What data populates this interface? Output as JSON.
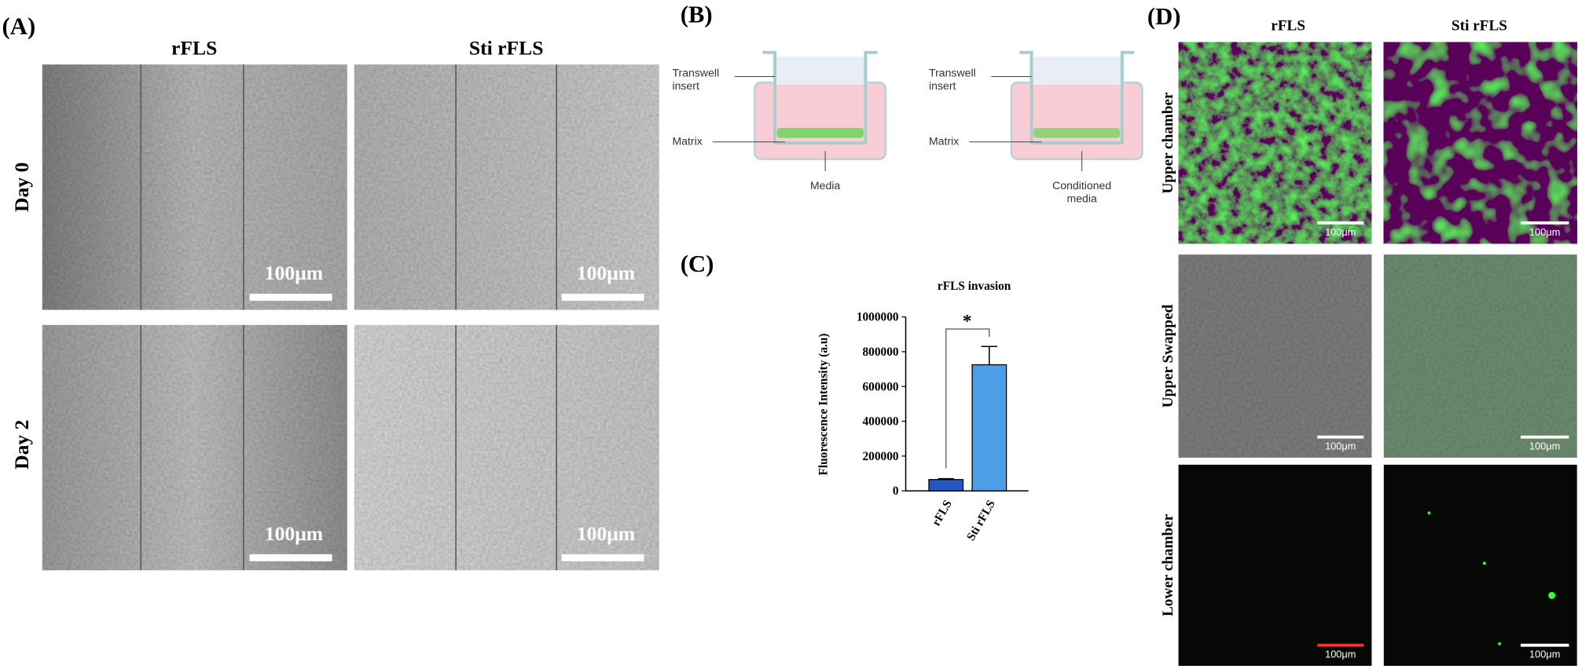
{
  "panel_a": {
    "label": "(A)",
    "columns": [
      "rFLS",
      "Sti rFLS"
    ],
    "rows": [
      "Day 0",
      "Day 2"
    ],
    "scale_bar": "100μm"
  },
  "panel_b": {
    "label": "(B)",
    "insert": [
      "Transwell",
      "insert"
    ],
    "matrix": "Matrix",
    "media": "Media",
    "conditioned": [
      "Conditioned",
      "media"
    ]
  },
  "panel_c": {
    "label": "(C)"
  },
  "panel_d": {
    "label": "(D)",
    "columns": [
      "rFLS",
      "Sti rFLS"
    ],
    "rows": [
      "Upper chamber",
      "Upper Swapped",
      "Lower chamber"
    ],
    "scale_bar": "100μm"
  },
  "chart_data": {
    "type": "bar",
    "title": "rFLS invasion",
    "y_label": "Fluorescence Intensity (a.u)",
    "categories": [
      "rFLS",
      "Sti rFLS"
    ],
    "values": [
      65000,
      725000
    ],
    "errors": [
      5000,
      105000
    ],
    "colors": [
      "#2457c5",
      "#4c9fe6"
    ],
    "ylim": [
      0,
      1000000
    ],
    "yticks": [
      0,
      200000,
      400000,
      600000,
      800000,
      1000000
    ],
    "significance": "*"
  }
}
